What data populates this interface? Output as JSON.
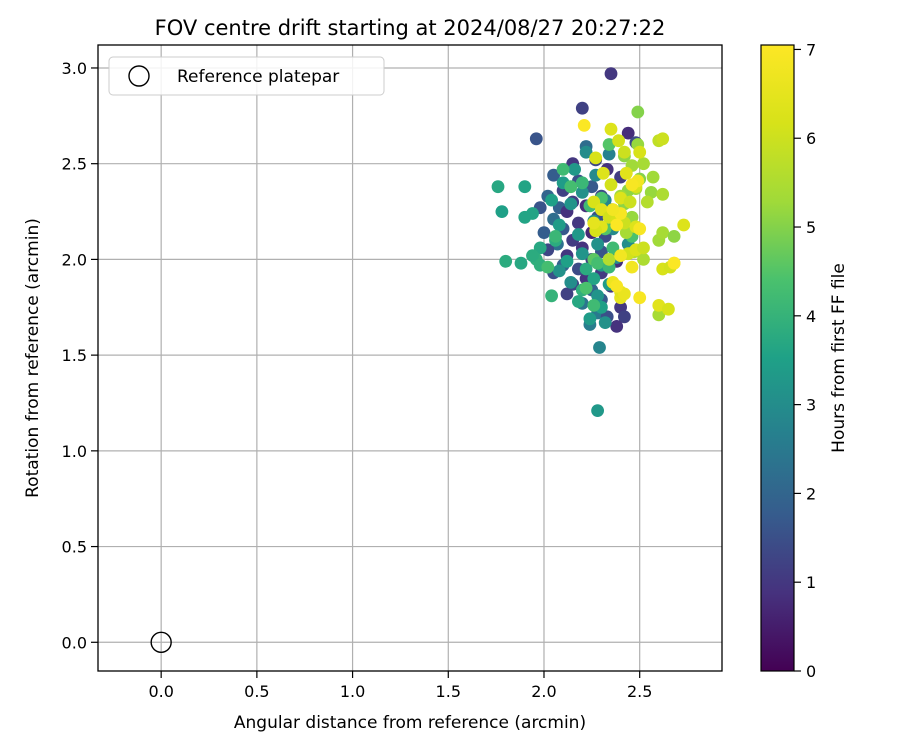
{
  "chart_data": {
    "type": "scatter",
    "title": "FOV centre drift starting at 2024/08/27 20:27:22",
    "xlabel": "Angular distance from reference (arcmin)",
    "ylabel": "Rotation from reference (arcmin)",
    "xlim": [
      -0.33,
      2.93
    ],
    "ylim": [
      -0.15,
      3.12
    ],
    "xticks": [
      "0.0",
      "0.5",
      "1.0",
      "1.5",
      "2.0",
      "2.5"
    ],
    "xtick_values": [
      0,
      0.5,
      1.0,
      1.5,
      2.0,
      2.5
    ],
    "yticks": [
      "0.0",
      "0.5",
      "1.0",
      "1.5",
      "2.0",
      "2.5",
      "3.0"
    ],
    "ytick_values": [
      0,
      0.5,
      1.0,
      1.5,
      2.0,
      2.5,
      3.0
    ],
    "grid": true,
    "legend": {
      "placement": "top-left",
      "entries": [
        "Reference platepar"
      ]
    },
    "reference_point": {
      "x": 0.0,
      "y": 0.0
    },
    "colorbar": {
      "label": "Hours from first FF file",
      "range": [
        0,
        7.05
      ],
      "ticks": [
        "0",
        "1",
        "2",
        "3",
        "4",
        "5",
        "6",
        "7"
      ],
      "tick_values": [
        0,
        1,
        2,
        3,
        4,
        5,
        6,
        7
      ],
      "colormap": "viridis"
    },
    "points": [
      [
        2.35,
        2.97,
        1.0
      ],
      [
        2.2,
        2.79,
        1.2
      ],
      [
        1.96,
        2.63,
        1.6
      ],
      [
        2.44,
        2.66,
        0.8
      ],
      [
        2.48,
        2.61,
        1.4
      ],
      [
        2.22,
        2.59,
        2.2
      ],
      [
        2.27,
        2.52,
        1.3
      ],
      [
        2.15,
        2.5,
        1.0
      ],
      [
        2.33,
        2.47,
        0.9
      ],
      [
        2.4,
        2.43,
        1.1
      ],
      [
        2.05,
        2.44,
        1.8
      ],
      [
        2.18,
        2.41,
        1.5
      ],
      [
        2.25,
        2.38,
        1.7
      ],
      [
        2.1,
        2.36,
        1.2
      ],
      [
        2.3,
        2.33,
        1.4
      ],
      [
        2.02,
        2.33,
        2.0
      ],
      [
        2.15,
        2.3,
        1.1
      ],
      [
        2.22,
        2.28,
        0.8
      ],
      [
        2.08,
        2.27,
        1.9
      ],
      [
        2.35,
        2.26,
        1.3
      ],
      [
        1.98,
        2.27,
        1.6
      ],
      [
        2.12,
        2.25,
        0.9
      ],
      [
        2.28,
        2.22,
        1.5
      ],
      [
        2.05,
        2.21,
        2.2
      ],
      [
        2.18,
        2.19,
        1.0
      ],
      [
        2.4,
        2.2,
        1.2
      ],
      [
        2.1,
        2.16,
        1.7
      ],
      [
        2.25,
        2.14,
        0.7
      ],
      [
        2.0,
        2.14,
        1.8
      ],
      [
        2.32,
        2.12,
        1.4
      ],
      [
        2.15,
        2.1,
        1.1
      ],
      [
        2.07,
        2.08,
        2.3
      ],
      [
        2.2,
        2.06,
        0.9
      ],
      [
        2.3,
        2.04,
        1.6
      ],
      [
        2.02,
        2.05,
        1.3
      ],
      [
        2.12,
        2.02,
        1.0
      ],
      [
        2.25,
        2.0,
        1.2
      ],
      [
        2.38,
        1.99,
        0.8
      ],
      [
        2.1,
        1.97,
        1.9
      ],
      [
        2.18,
        1.95,
        1.4
      ],
      [
        2.3,
        1.93,
        1.1
      ],
      [
        2.05,
        1.93,
        1.5
      ],
      [
        2.22,
        1.9,
        0.9
      ],
      [
        2.15,
        1.87,
        1.3
      ],
      [
        2.35,
        1.86,
        1.0
      ],
      [
        2.25,
        1.84,
        2.0
      ],
      [
        2.12,
        1.82,
        1.2
      ],
      [
        2.3,
        1.79,
        1.7
      ],
      [
        2.2,
        1.77,
        2.4
      ],
      [
        2.4,
        1.75,
        1.0
      ],
      [
        2.28,
        1.72,
        2.5
      ],
      [
        2.33,
        1.7,
        1.5
      ],
      [
        2.42,
        1.7,
        1.2
      ],
      [
        2.24,
        1.66,
        2.6
      ],
      [
        2.38,
        1.65,
        0.9
      ],
      [
        2.29,
        1.54,
        2.8
      ],
      [
        2.28,
        1.21,
        3.3
      ],
      [
        2.22,
        2.56,
        3.0
      ],
      [
        2.34,
        2.55,
        2.7
      ],
      [
        2.16,
        2.47,
        3.3
      ],
      [
        2.27,
        2.44,
        2.9
      ],
      [
        2.1,
        2.4,
        3.4
      ],
      [
        2.2,
        2.35,
        3.1
      ],
      [
        2.04,
        2.31,
        3.5
      ],
      [
        2.32,
        2.31,
        2.8
      ],
      [
        2.14,
        2.29,
        3.2
      ],
      [
        1.94,
        2.24,
        3.6
      ],
      [
        2.26,
        2.2,
        3.0
      ],
      [
        2.08,
        2.18,
        3.4
      ],
      [
        2.36,
        2.16,
        2.9
      ],
      [
        2.18,
        2.13,
        3.3
      ],
      [
        2.06,
        2.1,
        3.8
      ],
      [
        2.28,
        2.08,
        3.1
      ],
      [
        1.98,
        2.06,
        3.7
      ],
      [
        2.2,
        2.03,
        3.2
      ],
      [
        2.38,
        2.01,
        3.0
      ],
      [
        2.12,
        1.99,
        3.5
      ],
      [
        1.96,
        2.0,
        3.9
      ],
      [
        2.3,
        1.97,
        3.3
      ],
      [
        2.22,
        1.95,
        3.8
      ],
      [
        2.08,
        1.94,
        3.1
      ],
      [
        2.26,
        1.9,
        3.6
      ],
      [
        2.14,
        1.88,
        3.0
      ],
      [
        2.34,
        1.87,
        3.4
      ],
      [
        2.2,
        1.84,
        3.9
      ],
      [
        2.28,
        1.81,
        3.2
      ],
      [
        2.18,
        1.78,
        3.7
      ],
      [
        2.3,
        1.75,
        3.5
      ],
      [
        2.24,
        1.69,
        3.4
      ],
      [
        2.32,
        1.67,
        3.1
      ],
      [
        2.44,
        2.08,
        3.0
      ],
      [
        1.76,
        2.38,
        3.7
      ],
      [
        1.9,
        2.38,
        3.6
      ],
      [
        1.78,
        2.25,
        3.5
      ],
      [
        1.9,
        2.22,
        3.6
      ],
      [
        1.8,
        1.99,
        3.8
      ],
      [
        1.88,
        1.98,
        3.7
      ],
      [
        1.94,
        2.02,
        3.8
      ],
      [
        1.98,
        1.97,
        3.9
      ],
      [
        2.04,
        1.81,
        4.0
      ],
      [
        2.02,
        1.96,
        4.3
      ],
      [
        2.1,
        2.47,
        4.2
      ],
      [
        2.2,
        2.4,
        4.1
      ],
      [
        2.14,
        2.38,
        4.3
      ],
      [
        2.06,
        2.12,
        4.1
      ],
      [
        2.3,
        2.32,
        4.4
      ],
      [
        2.24,
        2.28,
        4.2
      ],
      [
        2.4,
        2.24,
        4.0
      ],
      [
        2.32,
        2.16,
        4.5
      ],
      [
        2.46,
        2.12,
        4.4
      ],
      [
        2.36,
        2.06,
        4.2
      ],
      [
        2.26,
        2.0,
        4.6
      ],
      [
        2.28,
        1.98,
        4.3
      ],
      [
        2.34,
        1.96,
        4.1
      ],
      [
        2.22,
        1.85,
        4.4
      ],
      [
        2.26,
        1.76,
        4.2
      ],
      [
        2.34,
        2.6,
        4.5
      ],
      [
        2.49,
        2.77,
        5.0
      ],
      [
        2.49,
        2.6,
        5.2
      ],
      [
        2.42,
        2.54,
        5.1
      ],
      [
        2.46,
        2.49,
        5.3
      ],
      [
        2.52,
        2.5,
        5.4
      ],
      [
        2.57,
        2.43,
        5.3
      ],
      [
        2.56,
        2.35,
        5.2
      ],
      [
        2.62,
        2.34,
        5.5
      ],
      [
        2.5,
        2.42,
        5.0
      ],
      [
        2.48,
        2.37,
        5.4
      ],
      [
        2.44,
        2.36,
        5.1
      ],
      [
        2.54,
        2.3,
        5.6
      ],
      [
        2.4,
        2.33,
        5.3
      ],
      [
        2.42,
        2.29,
        5.1
      ],
      [
        2.36,
        2.26,
        5.5
      ],
      [
        2.38,
        2.22,
        5.6
      ],
      [
        2.46,
        2.22,
        5.2
      ],
      [
        2.43,
        2.14,
        5.4
      ],
      [
        2.6,
        2.1,
        5.3
      ],
      [
        2.62,
        2.14,
        5.4
      ],
      [
        2.68,
        2.12,
        5.1
      ],
      [
        2.47,
        2.04,
        5.6
      ],
      [
        2.52,
        2.0,
        5.5
      ],
      [
        2.6,
        1.71,
        5.4
      ],
      [
        2.34,
        2.0,
        5.6
      ],
      [
        2.6,
        2.62,
        5.8
      ],
      [
        2.62,
        2.63,
        6.0
      ],
      [
        2.39,
        2.62,
        6.1
      ],
      [
        2.35,
        2.68,
        6.3
      ],
      [
        2.27,
        2.53,
        6.2
      ],
      [
        2.42,
        2.56,
        6.0
      ],
      [
        2.5,
        2.56,
        6.2
      ],
      [
        2.43,
        2.45,
        6.4
      ],
      [
        2.48,
        2.38,
        6.2
      ],
      [
        2.31,
        2.45,
        6.3
      ],
      [
        2.35,
        2.39,
        6.1
      ],
      [
        2.4,
        2.32,
        6.3
      ],
      [
        2.45,
        2.3,
        6.0
      ],
      [
        2.26,
        2.3,
        6.2
      ],
      [
        2.3,
        2.26,
        6.4
      ],
      [
        2.34,
        2.22,
        6.1
      ],
      [
        2.38,
        2.2,
        6.2
      ],
      [
        2.42,
        2.19,
        6.0
      ],
      [
        2.48,
        2.17,
        6.3
      ],
      [
        2.3,
        2.17,
        6.4
      ],
      [
        2.27,
        2.15,
        6.2
      ],
      [
        2.44,
        2.03,
        6.1
      ],
      [
        2.48,
        2.05,
        6.3
      ],
      [
        2.62,
        1.95,
        6.2
      ],
      [
        2.68,
        1.98,
        6.4
      ],
      [
        2.73,
        2.18,
        6.3
      ],
      [
        2.66,
        1.96,
        6.1
      ],
      [
        2.6,
        1.76,
        6.4
      ],
      [
        2.65,
        1.74,
        6.2
      ],
      [
        2.52,
        2.06,
        6.0
      ],
      [
        2.4,
        1.8,
        6.5
      ],
      [
        2.4,
        1.83,
        6.4
      ],
      [
        2.36,
        1.88,
        6.7
      ],
      [
        2.42,
        1.82,
        6.6
      ],
      [
        2.26,
        2.19,
        6.5
      ],
      [
        2.21,
        2.7,
        7.0
      ],
      [
        2.49,
        2.41,
        6.8
      ],
      [
        2.46,
        2.39,
        6.9
      ],
      [
        2.4,
        2.24,
        6.9
      ],
      [
        2.36,
        2.26,
        6.8
      ],
      [
        2.38,
        2.18,
        7.0
      ],
      [
        2.5,
        2.16,
        6.9
      ],
      [
        2.4,
        2.02,
        6.8
      ],
      [
        2.5,
        1.8,
        6.9
      ],
      [
        2.68,
        1.98,
        7.0
      ],
      [
        2.46,
        1.96,
        6.8
      ],
      [
        2.38,
        1.86,
        6.9
      ]
    ]
  }
}
